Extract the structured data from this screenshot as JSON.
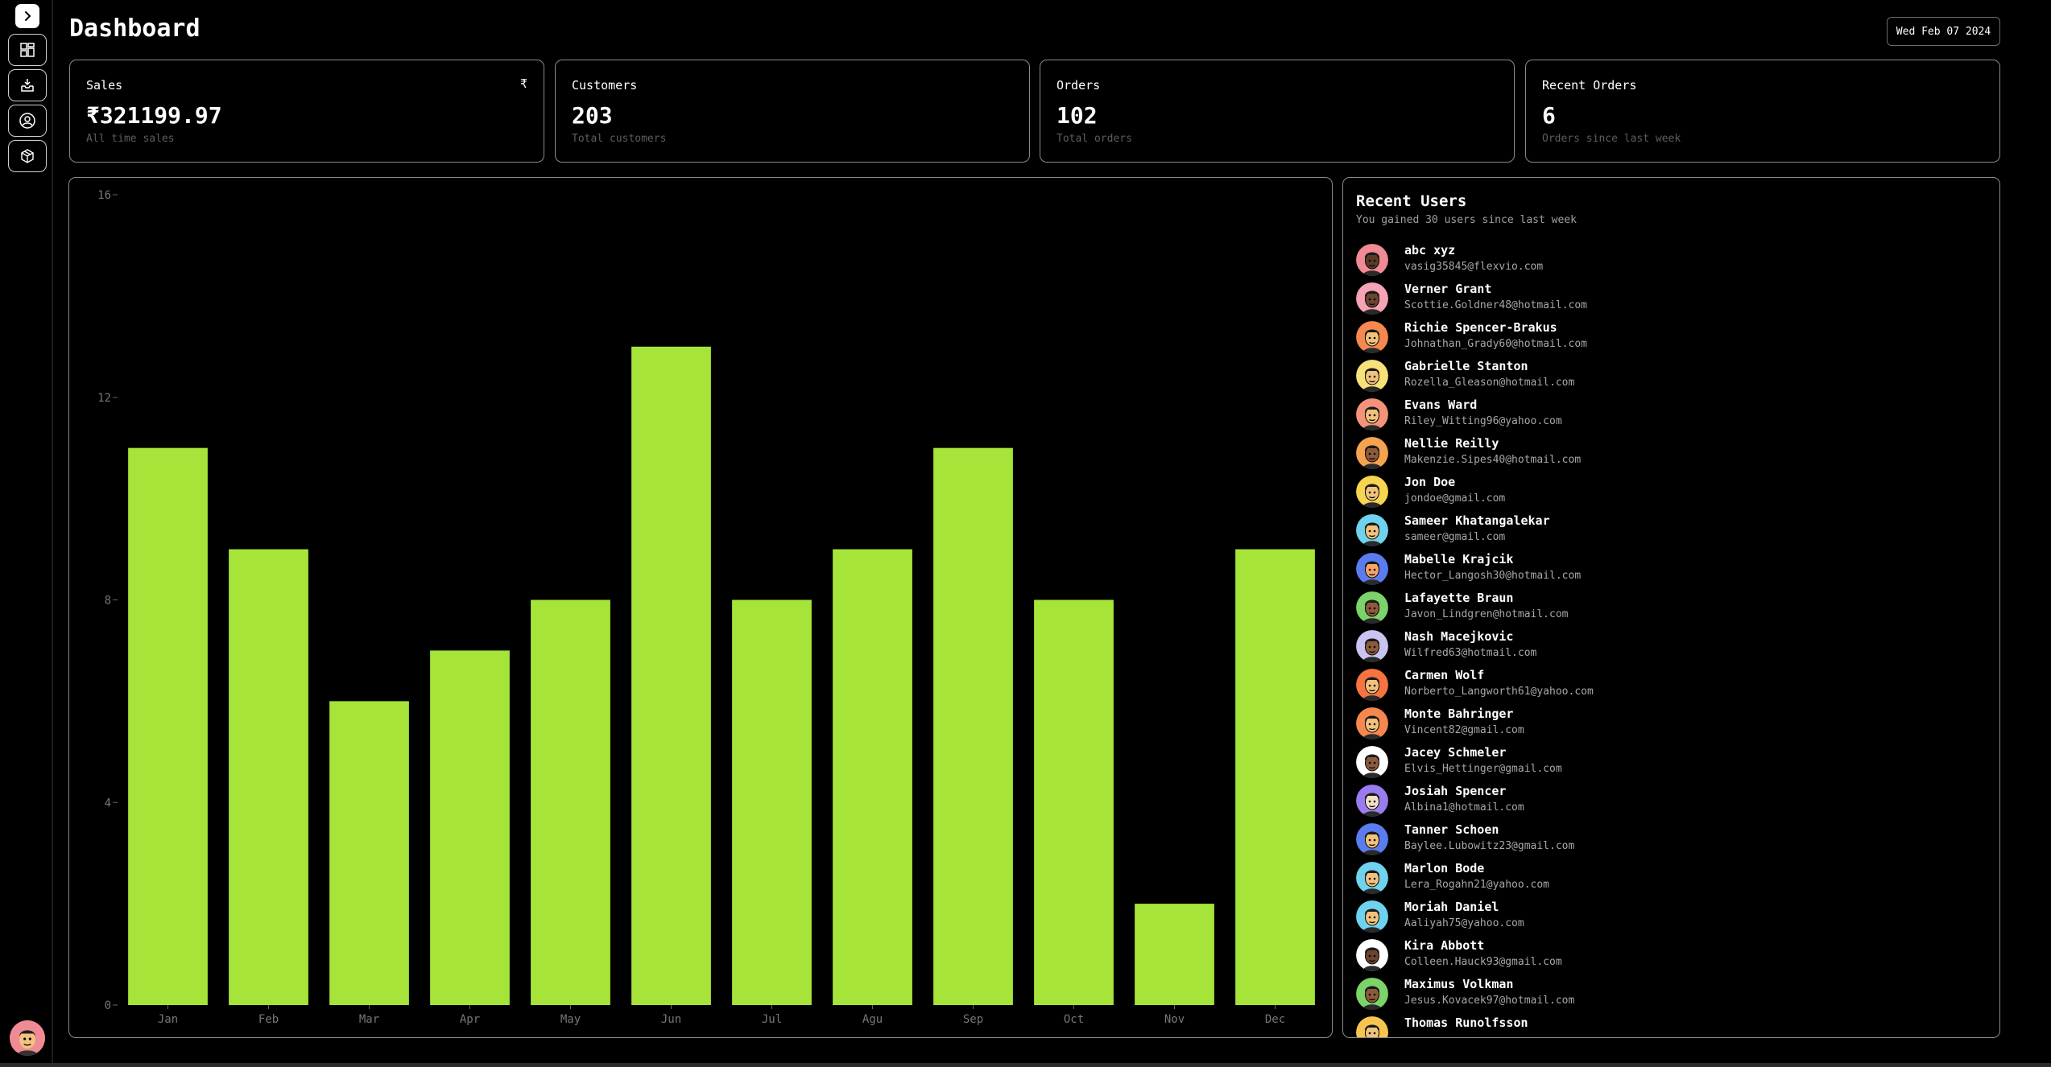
{
  "header": {
    "title": "Dashboard",
    "date": "Wed Feb 07 2024"
  },
  "sidebar": {
    "expand_icon": "chevron-right-icon",
    "items": [
      {
        "name": "dashboard",
        "icon": "grid-icon"
      },
      {
        "name": "orders",
        "icon": "inbox-icon"
      },
      {
        "name": "users",
        "icon": "user-icon"
      },
      {
        "name": "products",
        "icon": "box-icon"
      }
    ]
  },
  "cards": [
    {
      "label": "Sales",
      "value": "₹321199.97",
      "sub": "All time sales",
      "icon": "₹"
    },
    {
      "label": "Customers",
      "value": "203",
      "sub": "Total customers"
    },
    {
      "label": "Orders",
      "value": "102",
      "sub": "Total orders"
    },
    {
      "label": "Recent Orders",
      "value": "6",
      "sub": "Orders since last week"
    }
  ],
  "chart_data": {
    "type": "bar",
    "categories": [
      "Jan",
      "Feb",
      "Mar",
      "Apr",
      "May",
      "Jun",
      "Jul",
      "Agu",
      "Sep",
      "Oct",
      "Nov",
      "Dec"
    ],
    "values": [
      11,
      9,
      6,
      7,
      8,
      13,
      8,
      9,
      11,
      8,
      2,
      9
    ],
    "yticks": [
      0,
      4,
      8,
      12,
      16
    ],
    "ylim": [
      0,
      16
    ],
    "grid": false,
    "color": "#a6e43a"
  },
  "recent_users": {
    "title": "Recent Users",
    "subtitle": "You gained 30 users since last week",
    "users": [
      {
        "name": "abc xyz",
        "email": "vasig35845@flexvio.com",
        "color": "#f08a94",
        "skin": "#5a3a2a"
      },
      {
        "name": "Verner Grant",
        "email": "Scottie.Goldner48@hotmail.com",
        "color": "#f5a3b5",
        "skin": "#6b4530"
      },
      {
        "name": "Richie Spencer-Brakus",
        "email": "Johnathan_Grady60@hotmail.com",
        "color": "#f5874f",
        "skin": "#f1c27d"
      },
      {
        "name": "Gabrielle Stanton",
        "email": "Rozella_Gleason@hotmail.com",
        "color": "#f7e27a",
        "skin": "#f1c27d"
      },
      {
        "name": "Evans Ward",
        "email": "Riley_Witting96@yahoo.com",
        "color": "#f5937a",
        "skin": "#f1c27d"
      },
      {
        "name": "Nellie Reilly",
        "email": "Makenzie.Sipes40@hotmail.com",
        "color": "#f5a34f",
        "skin": "#8d5a3b"
      },
      {
        "name": "Jon Doe",
        "email": "jondoe@gmail.com",
        "color": "#f7d54f",
        "skin": "#f1c27d"
      },
      {
        "name": "Sameer Khatangalekar",
        "email": "sameer@gmail.com",
        "color": "#6fd3f0",
        "skin": "#f1c27d"
      },
      {
        "name": "Mabelle Krajcik",
        "email": "Hector_Langosh30@hotmail.com",
        "color": "#5b7cf0",
        "skin": "#f5a36b"
      },
      {
        "name": "Lafayette Braun",
        "email": "Javon_Lindgren@hotmail.com",
        "color": "#7bd36a",
        "skin": "#8d5a3b"
      },
      {
        "name": "Nash Macejkovic",
        "email": "Wilfred63@hotmail.com",
        "color": "#c9c4f0",
        "skin": "#8d5a3b"
      },
      {
        "name": "Carmen Wolf",
        "email": "Norberto_Langworth61@yahoo.com",
        "color": "#f5743f",
        "skin": "#f1c27d"
      },
      {
        "name": "Monte Bahringer",
        "email": "Vincent82@gmail.com",
        "color": "#f5874f",
        "skin": "#f1c27d"
      },
      {
        "name": "Jacey Schmeler",
        "email": "Elvis_Hettinger@gmail.com",
        "color": "#ffffff",
        "skin": "#8d5a3b"
      },
      {
        "name": "Josiah Spencer",
        "email": "Albina1@hotmail.com",
        "color": "#9b7cf0",
        "skin": "#f1e0c5"
      },
      {
        "name": "Tanner Schoen",
        "email": "Baylee.Lubowitz23@gmail.com",
        "color": "#5b7cf0",
        "skin": "#f1c27d"
      },
      {
        "name": "Marlon Bode",
        "email": "Lera_Rogahn21@yahoo.com",
        "color": "#6fd3f0",
        "skin": "#f1c27d"
      },
      {
        "name": "Moriah Daniel",
        "email": "Aaliyah75@yahoo.com",
        "color": "#6fd3f0",
        "skin": "#f1c27d"
      },
      {
        "name": "Kira Abbott",
        "email": "Colleen.Hauck93@gmail.com",
        "color": "#ffffff",
        "skin": "#6b4530"
      },
      {
        "name": "Maximus Volkman",
        "email": "Jesus.Kovacek97@hotmail.com",
        "color": "#7bd36a",
        "skin": "#8d5a3b"
      },
      {
        "name": "Thomas Runolfsson",
        "email": "",
        "color": "#f7c54f",
        "skin": "#f1c27d"
      }
    ]
  },
  "colors": {
    "accent": "#a6e43a",
    "border": "#8a8a8a",
    "muted": "#5e5e5e"
  }
}
